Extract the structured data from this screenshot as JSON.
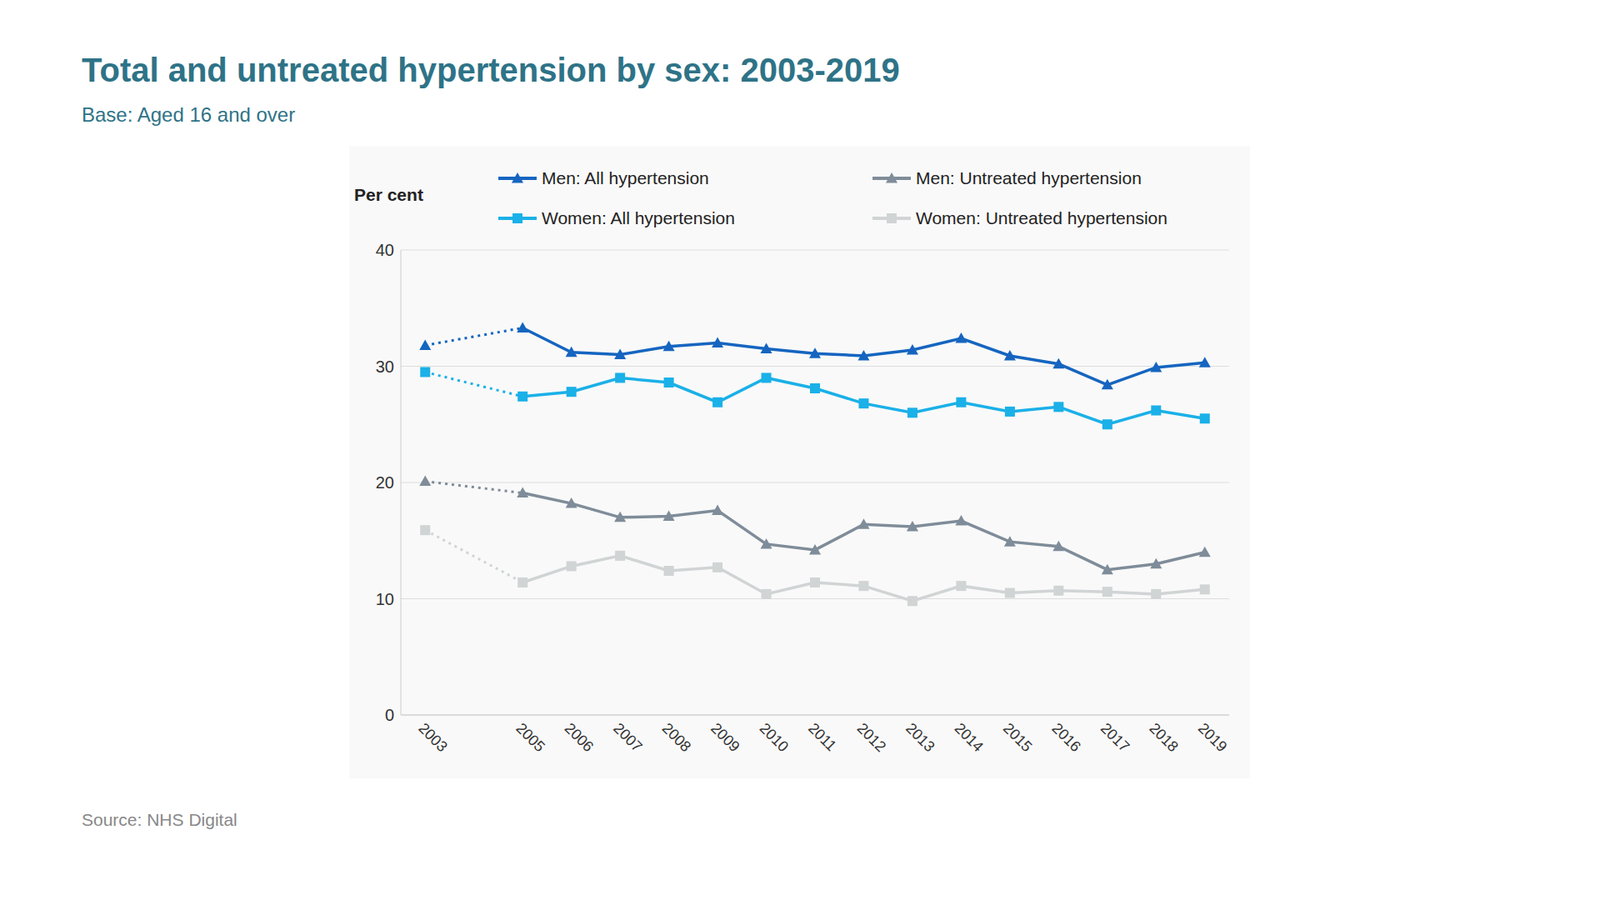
{
  "chart_data": {
    "type": "line",
    "title": "Total and untreated hypertension by sex: 2003-2019",
    "subtitle": "Base: Aged 16 and over",
    "source": "Source: NHS Digital",
    "y_label": "Per cent",
    "x": [
      2003,
      2005,
      2006,
      2007,
      2008,
      2009,
      2010,
      2011,
      2012,
      2013,
      2014,
      2015,
      2016,
      2017,
      2018,
      2019
    ],
    "xlim": [
      2002.5,
      2019.5
    ],
    "xticks": [
      2003,
      2005,
      2006,
      2007,
      2008,
      2009,
      2010,
      2011,
      2012,
      2013,
      2014,
      2015,
      2016,
      2017,
      2018,
      2019
    ],
    "ylim": [
      0,
      40
    ],
    "yticks": [
      0,
      10,
      20,
      30,
      40
    ],
    "grid": true,
    "legend": "top",
    "series": [
      {
        "name": "Men: All hypertension",
        "color": "#1565c0",
        "marker": "triangle",
        "values": [
          31.8,
          33.3,
          31.2,
          31.0,
          31.7,
          32.0,
          31.5,
          31.1,
          30.9,
          31.4,
          32.4,
          30.9,
          30.2,
          28.4,
          29.9,
          30.3
        ]
      },
      {
        "name": "Women: All hypertension",
        "color": "#1ab0e8",
        "marker": "square",
        "values": [
          29.5,
          27.4,
          27.8,
          29.0,
          28.6,
          26.9,
          29.0,
          28.1,
          26.8,
          26.0,
          26.9,
          26.1,
          26.5,
          25.0,
          26.2,
          25.5
        ]
      },
      {
        "name": "Men: Untreated hypertension",
        "color": "#7f8c99",
        "marker": "triangle",
        "values": [
          20.1,
          19.1,
          18.2,
          17.0,
          17.1,
          17.6,
          14.7,
          14.2,
          16.4,
          16.2,
          16.7,
          14.9,
          14.5,
          12.5,
          13.0,
          14.0
        ]
      },
      {
        "name": "Women: Untreated hypertension",
        "color": "#d0d4d4",
        "marker": "square",
        "values": [
          15.9,
          11.4,
          12.8,
          13.7,
          12.4,
          12.7,
          10.4,
          11.4,
          11.1,
          9.8,
          11.1,
          10.5,
          10.7,
          10.6,
          10.4,
          10.8
        ]
      }
    ]
  }
}
